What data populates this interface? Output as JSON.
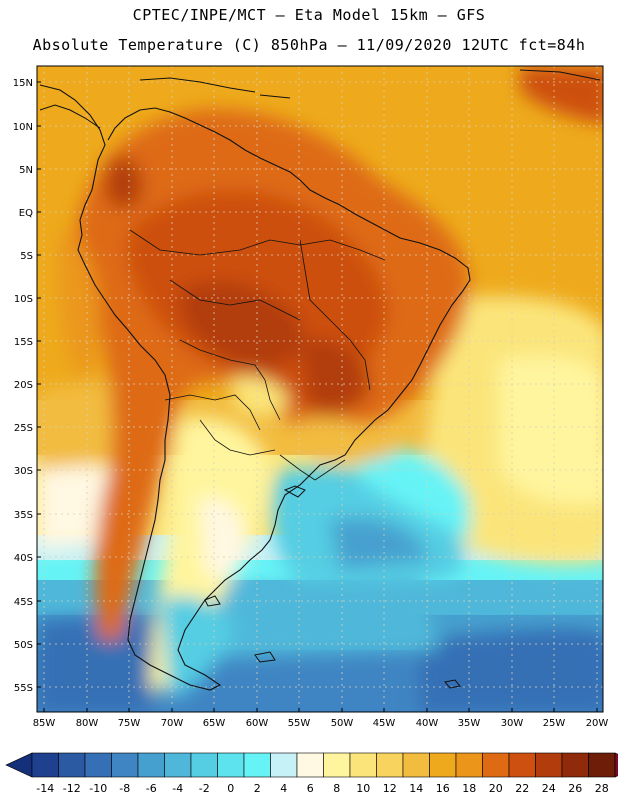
{
  "header": {
    "line1": "CPTEC/INPE/MCT —  Eta Model 15km — GFS",
    "line2": "Absolute Temperature (C) 850hPa — 11/09/2020 12UTC fct=84h"
  },
  "axes": {
    "lat_labels": [
      "15N",
      "10N",
      "5N",
      "EQ",
      "5S",
      "10S",
      "15S",
      "20S",
      "25S",
      "30S",
      "35S",
      "40S",
      "45S",
      "50S",
      "55S"
    ],
    "lon_labels": [
      "85W",
      "80W",
      "75W",
      "70W",
      "65W",
      "60W",
      "55W",
      "50W",
      "45W",
      "40W",
      "35W",
      "30W",
      "25W",
      "20W"
    ]
  },
  "colorbar": {
    "labels": [
      "-14",
      "-12",
      "-10",
      "-8",
      "-6",
      "-4",
      "-2",
      "0",
      "2",
      "4",
      "6",
      "8",
      "10",
      "12",
      "14",
      "16",
      "18",
      "20",
      "22",
      "24",
      "26",
      "28"
    ],
    "colors": [
      "#1f3f8f",
      "#2b5aa3",
      "#356fb5",
      "#3f85c3",
      "#46a0cf",
      "#4fb8da",
      "#55cde3",
      "#5ce3ee",
      "#66f3f6",
      "#c6f1f6",
      "#fff8e2",
      "#fff59e",
      "#fbe57a",
      "#f8d35e",
      "#f2bc3f",
      "#eeaa1c",
      "#eb961a",
      "#de6a13",
      "#cd5010",
      "#b23c0c",
      "#8f2a0a",
      "#6d1d08"
    ],
    "low_arrow_color": "#15307a",
    "high_arrow_color": "#7a0a28"
  }
}
